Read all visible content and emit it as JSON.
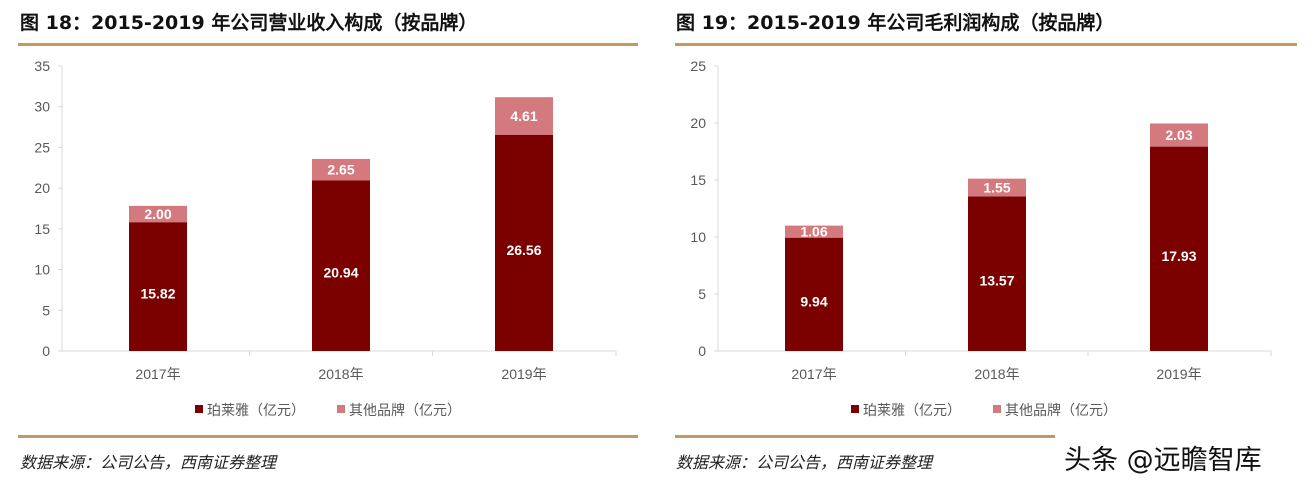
{
  "colors": {
    "main": "#7b0000",
    "other": "#d47a7e",
    "rule": "#c09a5b"
  },
  "watermark": "头条 @远瞻智库",
  "chart_data": [
    {
      "type": "bar",
      "stacked": true,
      "title": "图 18：2015-2019 年公司营业收入构成（按品牌）",
      "categories": [
        "2017年",
        "2018年",
        "2019年"
      ],
      "ylim": [
        0,
        35
      ],
      "yticks": [
        0,
        5,
        10,
        15,
        20,
        25,
        30,
        35
      ],
      "series": [
        {
          "name": "珀莱雅（亿元）",
          "values": [
            15.82,
            20.94,
            26.56
          ],
          "labels": [
            "15.82",
            "20.94",
            "26.56"
          ]
        },
        {
          "name": "其他品牌（亿元）",
          "values": [
            2.0,
            2.65,
            4.61
          ],
          "labels": [
            "2.00",
            "2.65",
            "4.61"
          ]
        }
      ],
      "legend": "bottom",
      "source": "数据来源：公司公告，西南证券整理"
    },
    {
      "type": "bar",
      "stacked": true,
      "title": "图 19：2015-2019 年公司毛利润构成（按品牌）",
      "categories": [
        "2017年",
        "2018年",
        "2019年"
      ],
      "ylim": [
        0,
        25
      ],
      "yticks": [
        0,
        5,
        10,
        15,
        20,
        25
      ],
      "series": [
        {
          "name": "珀莱雅（亿元）",
          "values": [
            9.94,
            13.57,
            17.93
          ],
          "labels": [
            "9.94",
            "13.57",
            "17.93"
          ]
        },
        {
          "name": "其他品牌（亿元）",
          "values": [
            1.06,
            1.55,
            2.03
          ],
          "labels": [
            "1.06",
            "1.55",
            "2.03"
          ]
        }
      ],
      "legend": "bottom",
      "source": "数据来源：公司公告，西南证券整理"
    }
  ]
}
